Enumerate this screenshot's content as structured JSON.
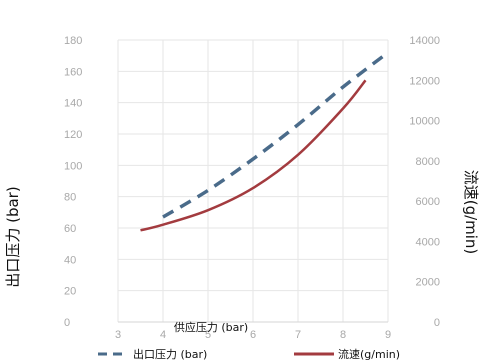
{
  "chart_data": {
    "type": "line",
    "xlabel": "供应压力 (bar)",
    "ylabel": "出口压力 (bar)",
    "y2label": "流速(g/min)",
    "xlim": [
      3,
      9
    ],
    "ylim": [
      0,
      180
    ],
    "y2lim": [
      0,
      14000
    ],
    "xticks": [
      "3",
      "4",
      "5",
      "6",
      "7",
      "8",
      "9"
    ],
    "yticks": [
      "0",
      "20",
      "40",
      "60",
      "80",
      "100",
      "120",
      "140",
      "160",
      "180"
    ],
    "y2ticks": [
      "0",
      "2000",
      "4000",
      "6000",
      "8000",
      "10000",
      "12000",
      "14000"
    ],
    "grid": true,
    "legend_position": "bottom",
    "series": [
      {
        "name": "出口压力 (bar)",
        "axis": "left",
        "style": "dashed",
        "color": "#4a6b8a",
        "x": [
          4,
          5,
          6,
          7,
          8,
          9
        ],
        "y": [
          67,
          84,
          104,
          126,
          150,
          172
        ]
      },
      {
        "name": "流速(g/min)",
        "axis": "right",
        "style": "solid",
        "color": "#a33b3f",
        "x": [
          3.5,
          4,
          5,
          6,
          7,
          8,
          8.5
        ],
        "y": [
          4550,
          4830,
          5550,
          6650,
          8300,
          10600,
          12000
        ]
      }
    ]
  }
}
